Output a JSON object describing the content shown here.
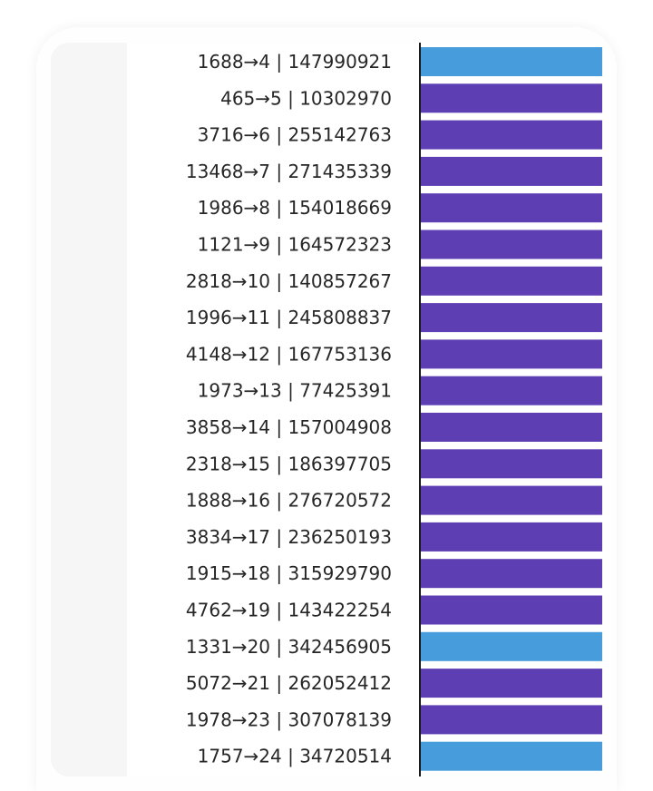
{
  "chart_data": {
    "type": "bar",
    "orientation": "horizontal",
    "categories": [
      "1688→4 | 147990921",
      "465→5 | 10302970",
      "3716→6 | 255142763",
      "13468→7 | 271435339",
      "1986→8 | 154018669",
      "1121→9 | 164572323",
      "2818→10 | 140857267",
      "1996→11 | 245808837",
      "4148→12 | 167753136",
      "1973→13 | 77425391",
      "3858→14 | 157004908",
      "2318→15 | 186397705",
      "1888→16 | 276720572",
      "3834→17 | 236250193",
      "1915→18 | 315929790",
      "4762→19 | 143422254",
      "1331→20 | 342456905",
      "5072→21 | 262052412",
      "1978→23 | 307078139",
      "1757→24 | 34720514"
    ],
    "values": [
      1,
      1,
      1,
      1,
      1,
      1,
      1,
      1,
      1,
      1,
      1,
      1,
      1,
      1,
      1,
      1,
      1,
      1,
      1,
      1
    ],
    "bar_colors": [
      "#479cdb",
      "#5e3eb3",
      "#5e3eb3",
      "#5e3eb3",
      "#5e3eb3",
      "#5e3eb3",
      "#5e3eb3",
      "#5e3eb3",
      "#5e3eb3",
      "#5e3eb3",
      "#5e3eb3",
      "#5e3eb3",
      "#5e3eb3",
      "#5e3eb3",
      "#5e3eb3",
      "#5e3eb3",
      "#479cdb",
      "#5e3eb3",
      "#5e3eb3",
      "#479cdb"
    ],
    "xlim": [
      0,
      1
    ],
    "title": "",
    "xlabel": "",
    "ylabel": "",
    "grid": false,
    "legend": "none"
  },
  "colors": {
    "accent_blue": "#479cdb",
    "accent_purple": "#5e3eb3",
    "axis": "#1a1a1a",
    "text": "#262626",
    "gutter": "#f6f6f6"
  }
}
